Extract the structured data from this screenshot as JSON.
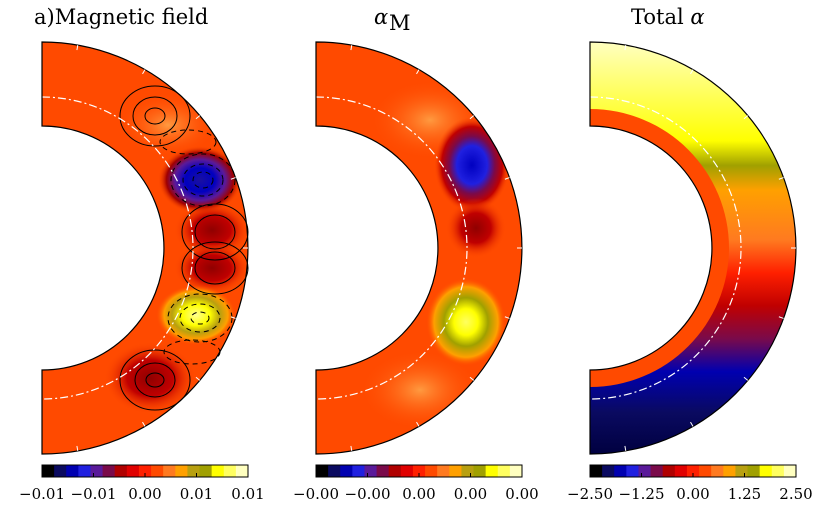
{
  "figure": {
    "panels": [
      {
        "title": "a)Magnetic field",
        "title_italic": false,
        "colorbar_ticks": [
          "−0.01",
          "−0.01",
          "0.00",
          "0.01",
          "0.01"
        ]
      },
      {
        "title": "α",
        "title_sub": "M",
        "title_italic": true,
        "colorbar_ticks": [
          "−0.00",
          "−0.00",
          "0.00",
          "0.00",
          "0.00"
        ]
      },
      {
        "title": "Total ",
        "title_symbol": "α",
        "title_italic": false,
        "colorbar_ticks": [
          "−2.50",
          "−1.25",
          "0.00",
          "1.25",
          "2.50"
        ]
      }
    ]
  },
  "colors": {
    "colormap": [
      "#000000",
      "#0a0a60",
      "#0000b0",
      "#2020e0",
      "#5a1a9a",
      "#7a0a4a",
      "#b00000",
      "#e00000",
      "#ff2000",
      "#ff4a00",
      "#ff7a20",
      "#ffa000",
      "#b8a010",
      "#a0a000",
      "#ffff00",
      "#ffff60",
      "#ffffc0"
    ],
    "background_field": "#ff4a00",
    "guide_line": "#ffffff"
  },
  "chart_data": [
    {
      "type": "heatmap",
      "title": "a)Magnetic field",
      "colorbar": {
        "ticks": [
          "−0.01",
          "−0.01",
          "0.00",
          "0.01",
          "0.01"
        ],
        "range": [
          -0.01,
          0.01
        ]
      },
      "overlay": "contour lines (solid positive, dashed negative)",
      "features": [
        {
          "feature": "positive contour cell",
          "color": "#ff4a00"
        },
        {
          "feature": "negative blob",
          "color": "#0000b0"
        },
        {
          "feature": "positive blob",
          "color": "#e00000"
        },
        {
          "feature": "positive blob",
          "color": "#b00000"
        },
        {
          "feature": "negative blob",
          "color": "#ffff00"
        },
        {
          "feature": "positive contour cell",
          "color": "#c00000"
        }
      ]
    },
    {
      "type": "heatmap",
      "title": "αM",
      "colorbar": {
        "ticks": [
          "−0.00",
          "−0.00",
          "0.00",
          "0.00",
          "0.00"
        ],
        "range": [
          -0.001,
          0.001
        ]
      },
      "features": [
        {
          "feature": "negative blob",
          "color": "#2020e0"
        },
        {
          "feature": "positive blob",
          "color": "#ffff00"
        }
      ]
    },
    {
      "type": "heatmap",
      "title": "Total α",
      "colorbar": {
        "ticks": [
          "−2.50",
          "−1.25",
          "0.00",
          "1.25",
          "2.50"
        ],
        "range": [
          -2.5,
          2.5
        ]
      },
      "structure": "latitude gradient: yellow (north) through orange/red to dark blue (south); inner band near zero"
    }
  ]
}
